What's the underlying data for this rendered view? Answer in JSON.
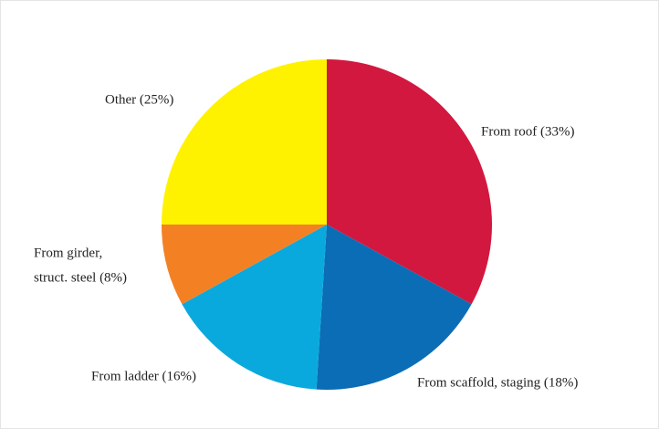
{
  "chart_data": {
    "type": "pie",
    "categories": [
      "From roof (33%)",
      "From scaffold, staging (18%)",
      "From ladder (16%)",
      [
        "From girder,",
        "struct. steel (8%)"
      ],
      "Other (25%)"
    ],
    "values": [
      33,
      18,
      16,
      8,
      25
    ],
    "colors": [
      "#d2183f",
      "#0b6db5",
      "#0aa9dd",
      "#f38124",
      "#fff200"
    ]
  }
}
